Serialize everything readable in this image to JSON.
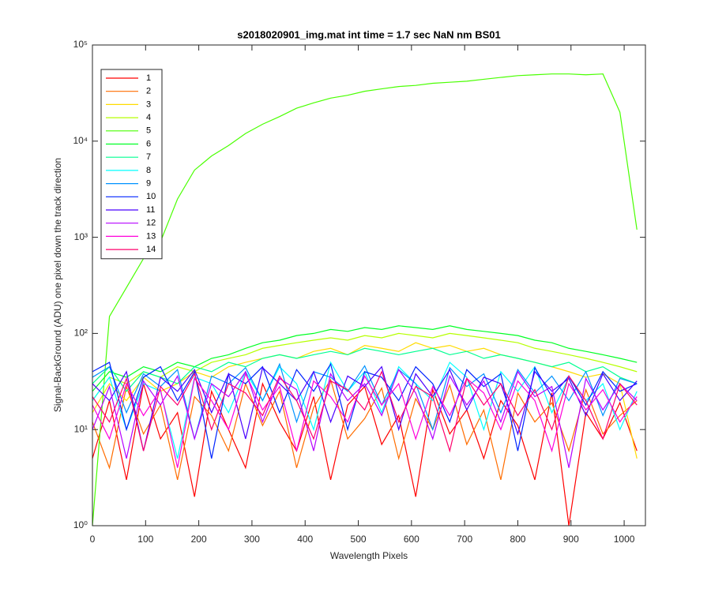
{
  "chart_data": {
    "type": "line",
    "title": "s2018020901_img.mat int time = 1.7 sec  NaN nm BS01",
    "x_label": "Wavelength Pixels",
    "y_label": "Signal-BackGround (ADU) one pixel down the track direction",
    "x": [
      0,
      32,
      64,
      96,
      128,
      160,
      192,
      224,
      256,
      288,
      320,
      352,
      384,
      416,
      448,
      480,
      512,
      544,
      576,
      608,
      640,
      672,
      704,
      736,
      768,
      800,
      832,
      864,
      896,
      928,
      960,
      992,
      1024
    ],
    "xlim": [
      0,
      1040
    ],
    "xticks": [
      0,
      100,
      200,
      300,
      400,
      500,
      600,
      700,
      800,
      900,
      1000
    ],
    "ylim": [
      1,
      100000
    ],
    "log_y": true,
    "yticks": [
      {
        "value": 1,
        "label": "10⁰"
      },
      {
        "value": 10,
        "label": "10¹"
      },
      {
        "value": 100,
        "label": "10²"
      },
      {
        "value": 1000,
        "label": "10³"
      },
      {
        "value": 10000,
        "label": "10⁴"
      },
      {
        "value": 100000,
        "label": "10⁵"
      }
    ],
    "legend": "top-left",
    "series": [
      {
        "name": "1",
        "color": "#ff0000",
        "values": [
          5,
          20,
          3,
          30,
          8,
          15,
          2,
          25,
          10,
          4,
          30,
          12,
          6,
          22,
          3,
          18,
          28,
          7,
          14,
          2,
          26,
          9,
          16,
          5,
          20,
          11,
          3,
          24,
          1,
          15,
          8,
          19,
          6
        ]
      },
      {
        "name": "2",
        "color": "#ff6d00",
        "values": [
          12,
          4,
          28,
          9,
          18,
          3,
          22,
          14,
          6,
          30,
          11,
          25,
          4,
          17,
          33,
          8,
          13,
          27,
          5,
          21,
          10,
          29,
          7,
          16,
          3,
          24,
          12,
          19,
          6,
          26,
          9,
          14,
          20
        ]
      },
      {
        "name": "3",
        "color": "#ffdb00",
        "values": [
          15,
          30,
          20,
          35,
          25,
          30,
          40,
          35,
          45,
          50,
          55,
          60,
          55,
          65,
          70,
          60,
          75,
          70,
          65,
          80,
          70,
          75,
          65,
          70,
          60,
          55,
          50,
          45,
          40,
          35,
          38,
          30,
          5
        ]
      },
      {
        "name": "4",
        "color": "#b6ff00",
        "values": [
          20,
          35,
          30,
          40,
          35,
          45,
          40,
          50,
          55,
          60,
          70,
          75,
          80,
          85,
          90,
          85,
          95,
          90,
          100,
          95,
          90,
          100,
          95,
          90,
          85,
          80,
          70,
          65,
          60,
          55,
          50,
          45,
          40
        ]
      },
      {
        "name": "5",
        "color": "#49ff00",
        "values": [
          1,
          150,
          300,
          600,
          900,
          2500,
          5000,
          7000,
          9000,
          12000,
          15000,
          18000,
          22000,
          25000,
          28000,
          30000,
          33000,
          35000,
          37000,
          38000,
          40000,
          41000,
          42000,
          44000,
          46000,
          48000,
          49000,
          50000,
          50000,
          49000,
          50000,
          20000,
          1200
        ]
      },
      {
        "name": "6",
        "color": "#00ff24",
        "values": [
          25,
          40,
          35,
          45,
          40,
          50,
          45,
          55,
          60,
          70,
          80,
          85,
          95,
          100,
          110,
          105,
          115,
          110,
          120,
          115,
          110,
          120,
          110,
          105,
          100,
          95,
          85,
          80,
          70,
          65,
          60,
          55,
          50
        ]
      },
      {
        "name": "7",
        "color": "#00ff92",
        "values": [
          30,
          45,
          25,
          40,
          35,
          30,
          45,
          40,
          50,
          45,
          55,
          60,
          55,
          60,
          65,
          60,
          70,
          65,
          60,
          65,
          70,
          60,
          65,
          55,
          60,
          55,
          50,
          45,
          50,
          40,
          45,
          35,
          30
        ]
      },
      {
        "name": "8",
        "color": "#00ffff",
        "values": [
          20,
          35,
          10,
          30,
          25,
          5,
          35,
          30,
          15,
          40,
          20,
          45,
          30,
          10,
          50,
          25,
          40,
          15,
          45,
          30,
          20,
          50,
          35,
          10,
          40,
          25,
          45,
          15,
          35,
          20,
          30,
          10,
          25
        ]
      },
      {
        "name": "9",
        "color": "#0092ff",
        "values": [
          35,
          45,
          15,
          38,
          28,
          42,
          8,
          36,
          30,
          44,
          20,
          48,
          12,
          40,
          35,
          25,
          46,
          18,
          42,
          30,
          10,
          44,
          28,
          38,
          15,
          42,
          24,
          36,
          20,
          40,
          14,
          34,
          30
        ]
      },
      {
        "name": "10",
        "color": "#0024ff",
        "values": [
          40,
          50,
          10,
          35,
          45,
          20,
          40,
          5,
          38,
          30,
          45,
          15,
          42,
          25,
          48,
          10,
          40,
          35,
          20,
          45,
          30,
          12,
          42,
          28,
          38,
          6,
          44,
          22,
          36,
          18,
          40,
          25,
          30
        ]
      },
      {
        "name": "11",
        "color": "#4900ff",
        "values": [
          30,
          20,
          40,
          6,
          35,
          25,
          42,
          15,
          38,
          8,
          44,
          30,
          20,
          40,
          12,
          36,
          28,
          45,
          10,
          38,
          22,
          42,
          16,
          35,
          30,
          9,
          40,
          25,
          34,
          14,
          38,
          20,
          32
        ]
      },
      {
        "name": "12",
        "color": "#b600ff",
        "values": [
          10,
          28,
          5,
          32,
          18,
          36,
          8,
          30,
          22,
          40,
          12,
          34,
          26,
          6,
          38,
          20,
          30,
          14,
          42,
          24,
          8,
          36,
          18,
          32,
          12,
          40,
          22,
          28,
          4,
          34,
          16,
          30,
          20
        ]
      },
      {
        "name": "13",
        "color": "#ff00db",
        "values": [
          18,
          8,
          30,
          14,
          26,
          4,
          34,
          20,
          10,
          38,
          16,
          28,
          6,
          32,
          22,
          12,
          36,
          18,
          30,
          8,
          28,
          14,
          34,
          24,
          10,
          32,
          20,
          6,
          30,
          16,
          26,
          12,
          22
        ]
      },
      {
        "name": "14",
        "color": "#ff006d",
        "values": [
          22,
          12,
          34,
          6,
          28,
          18,
          38,
          10,
          30,
          24,
          14,
          36,
          20,
          8,
          32,
          26,
          16,
          40,
          12,
          28,
          22,
          6,
          34,
          18,
          30,
          14,
          26,
          10,
          36,
          20,
          8,
          30,
          18
        ]
      }
    ]
  }
}
